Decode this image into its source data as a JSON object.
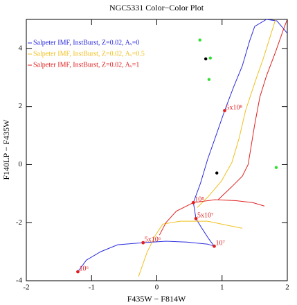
{
  "chart_data": {
    "type": "line",
    "title": "NGC5331 Color−Color Plot",
    "x_label": "F435W − F814W",
    "y_label": "F140LP − F435W",
    "xlim": [
      -2,
      2
    ],
    "ylim": [
      -4,
      5
    ],
    "xticks": [
      -2,
      -1,
      0,
      1,
      2
    ],
    "yticks": [
      -4,
      -2,
      0,
      2,
      4
    ],
    "legend": "upper left",
    "series": [
      {
        "name": "Salpeter IMF, InstBurst, Z=0.02, Aᵥ=0",
        "color": "#2a2ae0",
        "x": [
          -1.21,
          -1.08,
          -0.86,
          -0.6,
          -0.21,
          0.14,
          0.46,
          0.78,
          0.88,
          0.8,
          0.69,
          0.6,
          0.56,
          0.67,
          0.78,
          0.91,
          1.04,
          1.18,
          1.31,
          1.42,
          1.5,
          1.68,
          1.84,
          1.93,
          2.0
        ],
        "y": [
          -3.69,
          -3.29,
          -3.0,
          -2.76,
          -2.69,
          -2.64,
          -2.67,
          -2.74,
          -2.81,
          -2.57,
          -2.19,
          -1.86,
          -1.31,
          -0.64,
          0.19,
          1.02,
          1.86,
          2.69,
          3.4,
          4.24,
          4.76,
          5.0,
          4.95,
          4.71,
          4.52
        ]
      },
      {
        "name": "Salpeter IMF, InstBurst, Z=0.02, Aᵥ=0.5",
        "color": "#f0c020",
        "x": [
          -0.28,
          -0.15,
          -0.02,
          0.09,
          0.36,
          0.78,
          1.1,
          1.31,
          null,
          0.62,
          0.78,
          0.99,
          1.15,
          1.26,
          1.36,
          1.5,
          1.63,
          1.73,
          1.82
        ],
        "y": [
          -3.86,
          -3.02,
          -2.43,
          -2.05,
          -1.95,
          -1.95,
          -2.1,
          -2.19,
          null,
          -1.48,
          -1.12,
          -0.57,
          0.07,
          0.9,
          1.86,
          2.81,
          3.64,
          4.36,
          5.0
        ]
      },
      {
        "name": "Salpeter IMF, InstBurst, Z=0.02, Aᵥ=1",
        "color": "#e02020",
        "x": [
          0.04,
          0.14,
          0.3,
          0.56,
          0.89,
          1.2,
          1.47,
          1.65,
          null,
          0.94,
          1.15,
          1.31,
          1.4,
          1.44,
          1.5,
          1.58,
          1.68,
          1.82,
          1.95,
          2.0
        ],
        "y": [
          -2.43,
          -2.0,
          -1.6,
          -1.31,
          -1.21,
          -1.24,
          -1.31,
          -1.43,
          null,
          -1.21,
          -0.76,
          -0.4,
          0.0,
          0.55,
          1.38,
          2.33,
          3.05,
          3.88,
          4.71,
          5.0
        ]
      }
    ],
    "points": [
      {
        "color": "#30e030",
        "x": [
          0.66,
          0.82,
          0.8,
          1.83
        ],
        "y": [
          4.29,
          3.67,
          2.93,
          -0.1
        ]
      },
      {
        "color": "#000000",
        "x": [
          0.75,
          0.92
        ],
        "y": [
          3.64,
          -0.29
        ]
      }
    ],
    "annotations": {
      "color": "#e02020",
      "labels": [
        "10⁶",
        "5x10⁶",
        "10⁷",
        "5x10⁷",
        "10⁸",
        "5x10⁸"
      ],
      "x": [
        -1.21,
        -0.21,
        0.88,
        0.6,
        0.56,
        1.04
      ],
      "y": [
        -3.69,
        -2.69,
        -2.81,
        -1.86,
        -1.31,
        1.86
      ]
    }
  }
}
